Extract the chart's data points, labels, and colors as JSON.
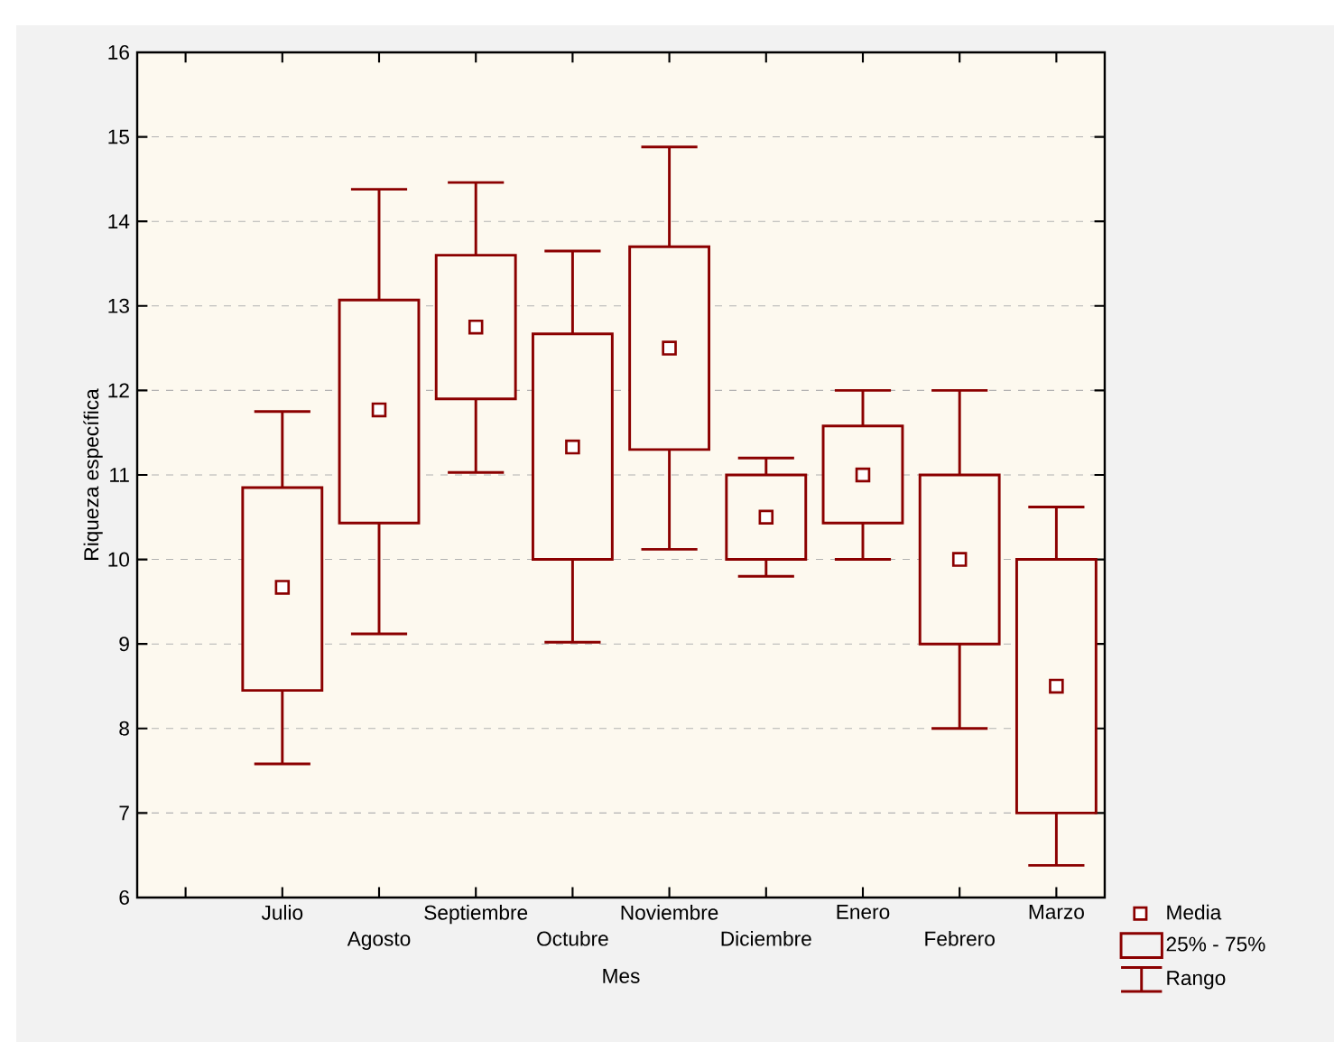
{
  "chart_data": {
    "type": "box",
    "xlabel": "Mes",
    "ylabel": "Riqueza específica",
    "categories": [
      "Julio",
      "Agosto",
      "Septiembre",
      "Octubre",
      "Noviembre",
      "Diciembre",
      "Enero",
      "Febrero",
      "Marzo"
    ],
    "color": "#8b0000",
    "boxes": [
      {
        "low": 7.58,
        "q1": 8.45,
        "q3": 10.85,
        "high": 11.75,
        "mean": 9.67
      },
      {
        "low": 9.12,
        "q1": 10.43,
        "q3": 13.07,
        "high": 14.38,
        "mean": 11.77
      },
      {
        "low": 11.03,
        "q1": 11.9,
        "q3": 13.6,
        "high": 14.46,
        "mean": 12.75
      },
      {
        "low": 9.02,
        "q1": 10.0,
        "q3": 12.67,
        "high": 13.65,
        "mean": 11.33
      },
      {
        "low": 10.12,
        "q1": 11.3,
        "q3": 13.7,
        "high": 14.88,
        "mean": 12.5
      },
      {
        "low": 9.8,
        "q1": 10.0,
        "q3": 11.0,
        "high": 11.2,
        "mean": 10.5
      },
      {
        "low": 10.0,
        "q1": 10.43,
        "q3": 11.58,
        "high": 12.0,
        "mean": 11.0
      },
      {
        "low": 8.0,
        "q1": 9.0,
        "q3": 11.0,
        "high": 12.0,
        "mean": 10.0
      },
      {
        "low": 6.38,
        "q1": 7.0,
        "q3": 10.0,
        "high": 10.62,
        "mean": 8.5
      }
    ],
    "ylim": [
      6,
      16
    ],
    "yticks": [
      6,
      7,
      8,
      9,
      10,
      11,
      12,
      13,
      14,
      15,
      16
    ],
    "grid": "y",
    "marker": "square",
    "annotations": [
      "Media",
      "25% - 75%",
      "Rango"
    ]
  }
}
